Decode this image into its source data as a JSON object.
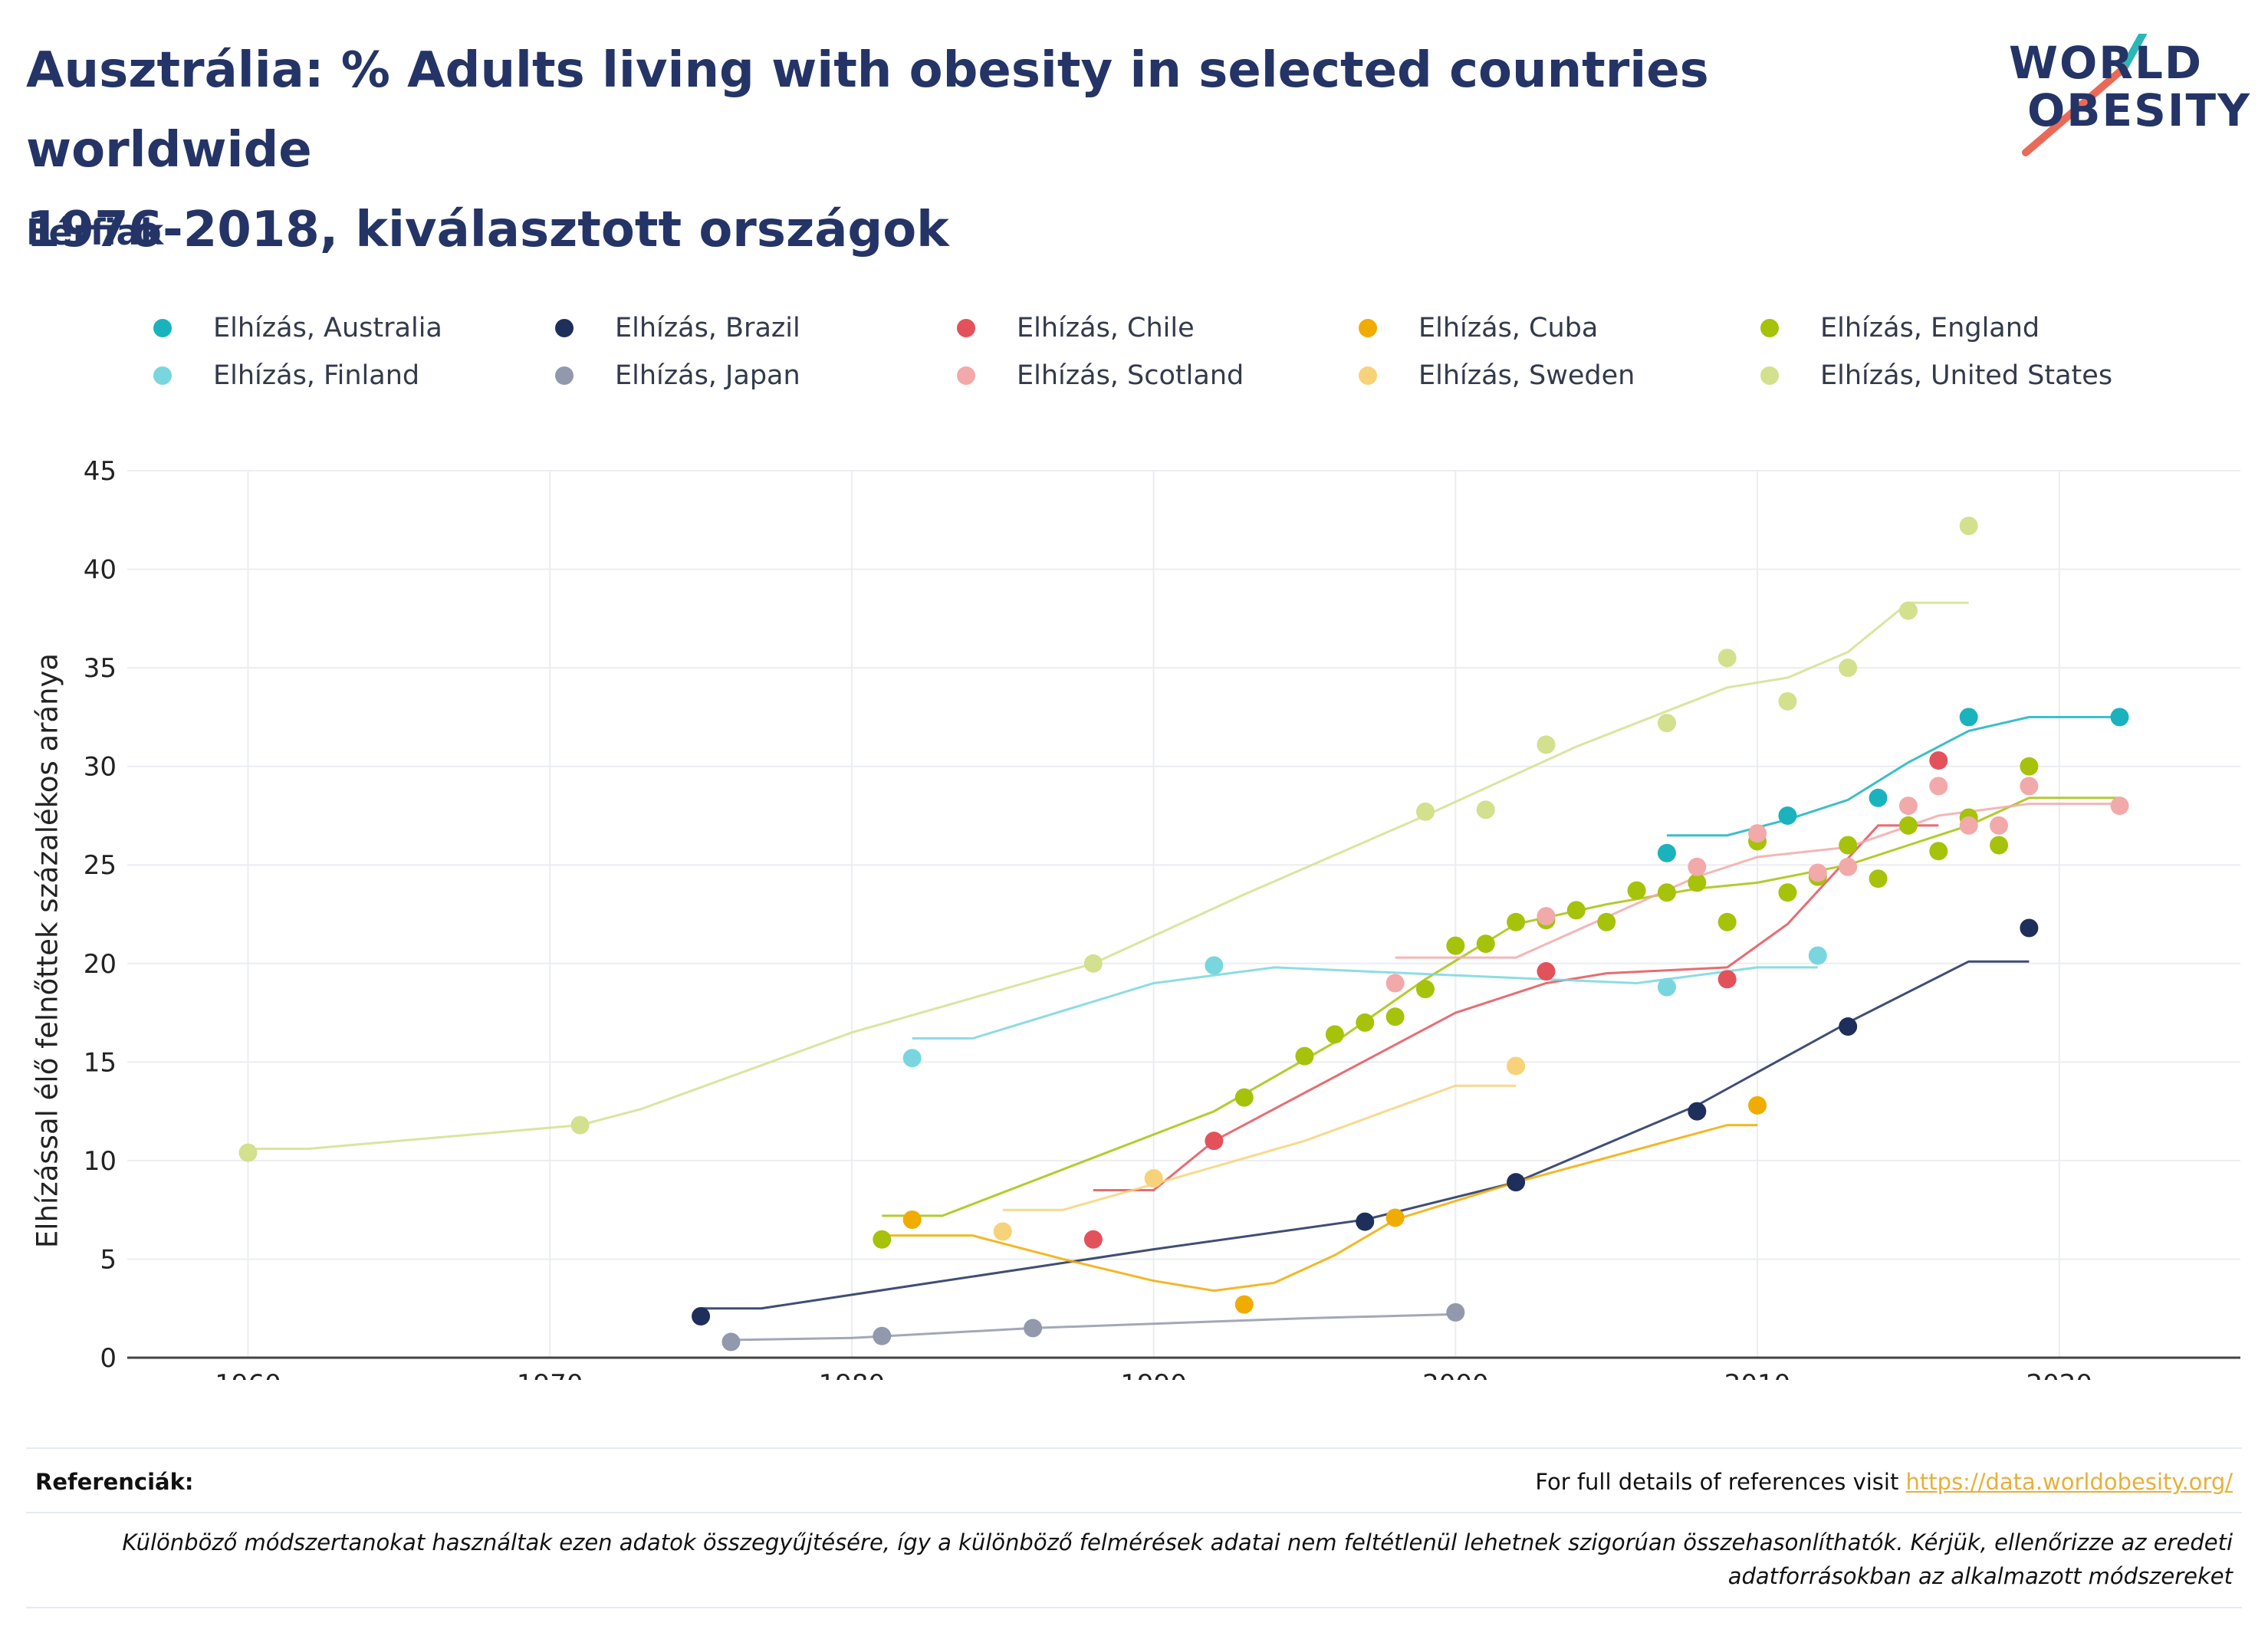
{
  "header": {
    "title_line1": "Ausztrália: % Adults living with obesity in selected countries worldwide",
    "title_line2": "1976-2018, kiválasztott országok",
    "subtitle": "Férfiak"
  },
  "logo": {
    "line1": "WORLD",
    "line2": "OBESITY"
  },
  "footer": {
    "references_label": "Referenciák:",
    "references_text": "For full details of references visit ",
    "references_link": "https://data.worldobesity.org/",
    "note": "Különböző módszertanokat használtak ezen adatok összegyűjtésére, így a különböző felmérések adatai nem feltétlenül lehetnek szigorúan összehasonlíthatók. Kérjük, ellenőrizze az eredeti adatforrásokban az alkalmazott módszereket"
  },
  "chart_data": {
    "type": "scatter",
    "ylabel": "Elhízással élő felnőttek százalékos aránya",
    "xlabel": "",
    "xlim": [
      1956,
      2026
    ],
    "ylim": [
      0,
      45
    ],
    "xticks": [
      1960,
      1970,
      1980,
      1990,
      2000,
      2010,
      2020
    ],
    "yticks": [
      0,
      5,
      10,
      15,
      20,
      25,
      30,
      35,
      40,
      45
    ],
    "grid": true,
    "legend_position": "top",
    "series": [
      {
        "name": "Elhízás, Australia",
        "color": "#1ab3bd",
        "points": [
          [
            2007,
            25.6
          ],
          [
            2011,
            27.5
          ],
          [
            2014,
            28.4
          ],
          [
            2017,
            32.5
          ],
          [
            2022,
            32.5
          ]
        ],
        "trend": [
          [
            2007,
            26.5
          ],
          [
            2009,
            26.5
          ],
          [
            2011,
            27.3
          ],
          [
            2013,
            28.3
          ],
          [
            2015,
            30.2
          ],
          [
            2017,
            31.8
          ],
          [
            2019,
            32.5
          ],
          [
            2022,
            32.5
          ]
        ]
      },
      {
        "name": "Elhízás, Brazil",
        "color": "#1f2f5c",
        "points": [
          [
            1975,
            2.1
          ],
          [
            1997,
            6.9
          ],
          [
            2002,
            8.9
          ],
          [
            2008,
            12.5
          ],
          [
            2013,
            16.8
          ],
          [
            2019,
            21.8
          ]
        ],
        "trend": [
          [
            1975,
            2.5
          ],
          [
            1977,
            2.5
          ],
          [
            1990,
            5.5
          ],
          [
            1997,
            7.0
          ],
          [
            2002,
            8.9
          ],
          [
            2008,
            12.8
          ],
          [
            2013,
            17.0
          ],
          [
            2017,
            20.1
          ],
          [
            2019,
            20.1
          ]
        ]
      },
      {
        "name": "Elhízás, Chile",
        "color": "#e3525b",
        "points": [
          [
            1988,
            6.0
          ],
          [
            1992,
            11.0
          ],
          [
            2003,
            19.6
          ],
          [
            2009,
            19.2
          ],
          [
            2016,
            30.3
          ]
        ],
        "trend": [
          [
            1988,
            8.5
          ],
          [
            1990,
            8.5
          ],
          [
            1992,
            11.0
          ],
          [
            2000,
            17.5
          ],
          [
            2003,
            19.0
          ],
          [
            2005,
            19.5
          ],
          [
            2009,
            19.8
          ],
          [
            2011,
            22.0
          ],
          [
            2014,
            27.0
          ],
          [
            2016,
            27.0
          ]
        ]
      },
      {
        "name": "Elhízás, Cuba",
        "color": "#f0ac00",
        "points": [
          [
            1982,
            7.0
          ],
          [
            1993,
            2.7
          ],
          [
            1998,
            7.1
          ],
          [
            2010,
            12.8
          ]
        ],
        "trend": [
          [
            1981,
            6.2
          ],
          [
            1984,
            6.2
          ],
          [
            1987,
            5.0
          ],
          [
            1990,
            3.9
          ],
          [
            1992,
            3.4
          ],
          [
            1994,
            3.8
          ],
          [
            1996,
            5.2
          ],
          [
            1998,
            7.0
          ],
          [
            2002,
            8.9
          ],
          [
            2009,
            11.8
          ],
          [
            2010,
            11.8
          ]
        ]
      },
      {
        "name": "Elhízás, England",
        "color": "#a6c20a",
        "points": [
          [
            1981,
            6.0
          ],
          [
            1993,
            13.2
          ],
          [
            1995,
            15.3
          ],
          [
            1996,
            16.4
          ],
          [
            1997,
            17.0
          ],
          [
            1998,
            17.3
          ],
          [
            1999,
            18.7
          ],
          [
            2000,
            20.9
          ],
          [
            2001,
            21.0
          ],
          [
            2002,
            22.1
          ],
          [
            2003,
            22.2
          ],
          [
            2004,
            22.7
          ],
          [
            2005,
            22.1
          ],
          [
            2006,
            23.7
          ],
          [
            2007,
            23.6
          ],
          [
            2008,
            24.1
          ],
          [
            2009,
            22.1
          ],
          [
            2010,
            26.2
          ],
          [
            2011,
            23.6
          ],
          [
            2012,
            24.4
          ],
          [
            2013,
            26.0
          ],
          [
            2014,
            24.3
          ],
          [
            2015,
            27.0
          ],
          [
            2016,
            25.7
          ],
          [
            2017,
            27.4
          ],
          [
            2018,
            26.0
          ],
          [
            2019,
            30.0
          ]
        ],
        "trend": [
          [
            1981,
            7.2
          ],
          [
            1983,
            7.2
          ],
          [
            1992,
            12.5
          ],
          [
            1996,
            16.0
          ],
          [
            1999,
            19.2
          ],
          [
            2002,
            22.0
          ],
          [
            2005,
            23.0
          ],
          [
            2008,
            23.8
          ],
          [
            2010,
            24.1
          ],
          [
            2013,
            25.0
          ],
          [
            2015,
            26.0
          ],
          [
            2017,
            27.0
          ],
          [
            2019,
            28.4
          ],
          [
            2022,
            28.4
          ]
        ]
      },
      {
        "name": "Elhízás, Finland",
        "color": "#79d6de",
        "points": [
          [
            1982,
            15.2
          ],
          [
            1992,
            19.9
          ],
          [
            2007,
            18.8
          ],
          [
            2012,
            20.4
          ]
        ],
        "trend": [
          [
            1982,
            16.2
          ],
          [
            1984,
            16.2
          ],
          [
            1990,
            19.0
          ],
          [
            1994,
            19.8
          ],
          [
            2000,
            19.4
          ],
          [
            2006,
            19.0
          ],
          [
            2010,
            19.8
          ],
          [
            2012,
            19.8
          ]
        ]
      },
      {
        "name": "Elhízás, Japan",
        "color": "#9299ad",
        "points": [
          [
            1976,
            0.8
          ],
          [
            1981,
            1.1
          ],
          [
            1986,
            1.5
          ],
          [
            2000,
            2.3
          ]
        ],
        "trend": [
          [
            1976,
            0.9
          ],
          [
            1980,
            1.0
          ],
          [
            1986,
            1.5
          ],
          [
            1995,
            2.0
          ],
          [
            2000,
            2.2
          ]
        ]
      },
      {
        "name": "Elhízás, Scotland",
        "color": "#f2a9aa",
        "points": [
          [
            1998,
            19.0
          ],
          [
            2003,
            22.4
          ],
          [
            2008,
            24.9
          ],
          [
            2010,
            26.6
          ],
          [
            2012,
            24.6
          ],
          [
            2013,
            24.9
          ],
          [
            2015,
            28.0
          ],
          [
            2016,
            29.0
          ],
          [
            2017,
            27.0
          ],
          [
            2018,
            27.0
          ],
          [
            2019,
            29.0
          ],
          [
            2022,
            28.0
          ]
        ],
        "trend": [
          [
            1998,
            20.3
          ],
          [
            2002,
            20.3
          ],
          [
            2008,
            24.4
          ],
          [
            2010,
            25.4
          ],
          [
            2013,
            25.9
          ],
          [
            2016,
            27.5
          ],
          [
            2019,
            28.1
          ],
          [
            2022,
            28.1
          ]
        ]
      },
      {
        "name": "Elhízás, Sweden",
        "color": "#f7d27a",
        "points": [
          [
            1985,
            6.4
          ],
          [
            1990,
            9.1
          ],
          [
            2002,
            14.8
          ]
        ],
        "trend": [
          [
            1985,
            7.5
          ],
          [
            1987,
            7.5
          ],
          [
            1990,
            8.8
          ],
          [
            1995,
            11.0
          ],
          [
            2000,
            13.8
          ],
          [
            2002,
            13.8
          ]
        ]
      },
      {
        "name": "Elhízás, United States",
        "color": "#d3e08e",
        "points": [
          [
            1960,
            10.4
          ],
          [
            1971,
            11.8
          ],
          [
            1988,
            20.0
          ],
          [
            1999,
            27.7
          ],
          [
            2001,
            27.8
          ],
          [
            2003,
            31.1
          ],
          [
            2007,
            32.2
          ],
          [
            2009,
            35.5
          ],
          [
            2011,
            33.3
          ],
          [
            2013,
            35.0
          ],
          [
            2015,
            37.9
          ],
          [
            2017,
            42.2
          ]
        ],
        "trend": [
          [
            1960,
            10.6
          ],
          [
            1962,
            10.6
          ],
          [
            1971,
            11.8
          ],
          [
            1973,
            12.6
          ],
          [
            1980,
            16.5
          ],
          [
            1988,
            20.0
          ],
          [
            1993,
            23.5
          ],
          [
            1999,
            27.5
          ],
          [
            2004,
            31.0
          ],
          [
            2007,
            32.8
          ],
          [
            2009,
            34.0
          ],
          [
            2011,
            34.5
          ],
          [
            2013,
            35.8
          ],
          [
            2015,
            38.3
          ],
          [
            2017,
            38.3
          ]
        ]
      }
    ]
  }
}
